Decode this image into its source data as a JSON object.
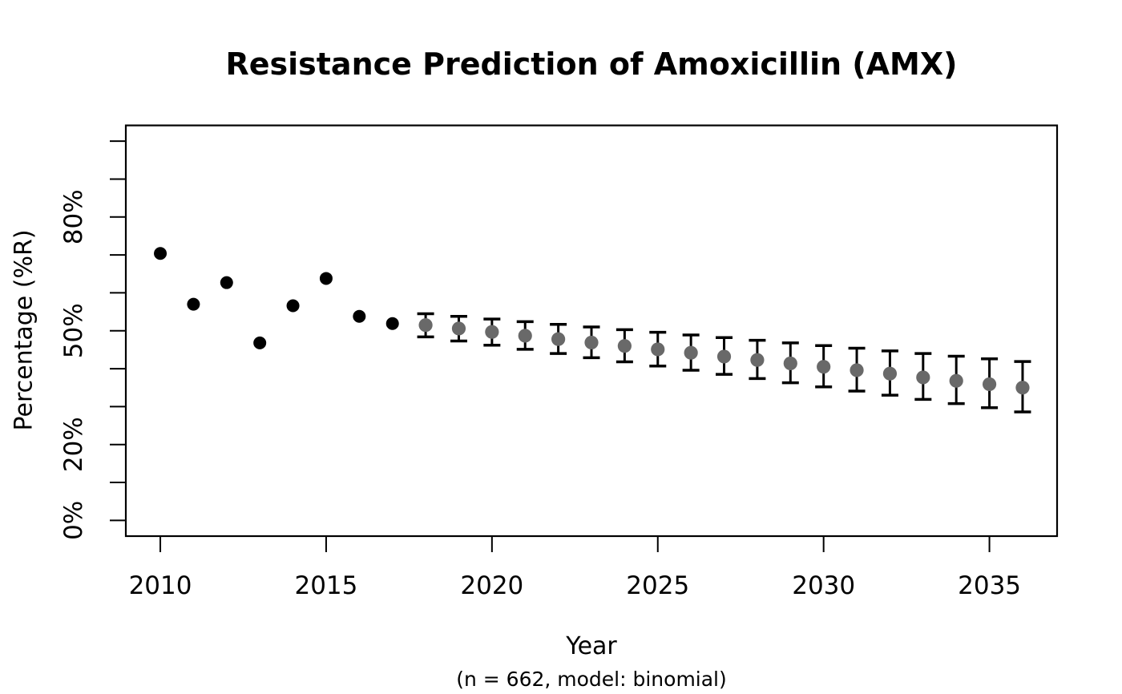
{
  "title": "Resistance Prediction of Amoxicillin (AMX)",
  "y_axis_label": "Percentage (%R)",
  "x_axis_label": "Year",
  "x_axis_sublabel": "(n = 662, model: binomial)",
  "colors": {
    "background": "#ffffff",
    "foreground": "#000000",
    "observed_point": "#000000",
    "prediction_point": "#696969",
    "error_bar": "#000000"
  },
  "chart_data": {
    "type": "scatter",
    "title": "Resistance Prediction of Amoxicillin (AMX)",
    "xlabel": "Year",
    "xlabel_note": "(n = 662, model: binomial)",
    "ylabel": "Percentage (%R)",
    "sample_size": 662,
    "model": "binomial",
    "grid": false,
    "legend": "none",
    "xlim": [
      2008.96,
      2037.04
    ],
    "ylim_pct": [
      -4.16,
      104.16
    ],
    "x_ticks": [
      2010,
      2015,
      2020,
      2025,
      2030,
      2035
    ],
    "y_minor_ticks_pct": [
      0,
      10,
      20,
      30,
      40,
      50,
      60,
      70,
      80,
      90,
      100
    ],
    "y_labeled_ticks": [
      {
        "pct": 0,
        "label": "0%"
      },
      {
        "pct": 20,
        "label": "20%"
      },
      {
        "pct": 50,
        "label": "50%"
      },
      {
        "pct": 80,
        "label": "80%"
      }
    ],
    "series": [
      {
        "name": "observed",
        "marker": "filled-circle",
        "color": "#000000",
        "points": [
          {
            "x": 2010,
            "y": 70.4
          },
          {
            "x": 2011,
            "y": 57.0
          },
          {
            "x": 2012,
            "y": 62.7
          },
          {
            "x": 2013,
            "y": 46.8
          },
          {
            "x": 2014,
            "y": 56.6
          },
          {
            "x": 2015,
            "y": 63.8
          },
          {
            "x": 2016,
            "y": 53.8
          },
          {
            "x": 2017,
            "y": 51.9
          }
        ]
      },
      {
        "name": "predicted",
        "marker": "filled-circle-with-error-bar",
        "color": "#696969",
        "error_bar_color": "#000000",
        "points": [
          {
            "x": 2018,
            "y": 51.5,
            "lo": 48.4,
            "hi": 54.5
          },
          {
            "x": 2019,
            "y": 50.6,
            "lo": 47.3,
            "hi": 53.8
          },
          {
            "x": 2020,
            "y": 49.7,
            "lo": 46.2,
            "hi": 53.1
          },
          {
            "x": 2021,
            "y": 48.7,
            "lo": 45.1,
            "hi": 52.4
          },
          {
            "x": 2022,
            "y": 47.8,
            "lo": 44.0,
            "hi": 51.7
          },
          {
            "x": 2023,
            "y": 46.9,
            "lo": 42.9,
            "hi": 51.0
          },
          {
            "x": 2024,
            "y": 46.0,
            "lo": 41.8,
            "hi": 50.3
          },
          {
            "x": 2025,
            "y": 45.1,
            "lo": 40.7,
            "hi": 49.6
          },
          {
            "x": 2026,
            "y": 44.2,
            "lo": 39.6,
            "hi": 48.9
          },
          {
            "x": 2027,
            "y": 43.2,
            "lo": 38.5,
            "hi": 48.2
          },
          {
            "x": 2028,
            "y": 42.3,
            "lo": 37.4,
            "hi": 47.5
          },
          {
            "x": 2029,
            "y": 41.4,
            "lo": 36.3,
            "hi": 46.8
          },
          {
            "x": 2030,
            "y": 40.5,
            "lo": 35.2,
            "hi": 46.1
          },
          {
            "x": 2031,
            "y": 39.6,
            "lo": 34.1,
            "hi": 45.4
          },
          {
            "x": 2032,
            "y": 38.7,
            "lo": 33.0,
            "hi": 44.7
          },
          {
            "x": 2033,
            "y": 37.7,
            "lo": 31.9,
            "hi": 44.0
          },
          {
            "x": 2034,
            "y": 36.8,
            "lo": 30.8,
            "hi": 43.3
          },
          {
            "x": 2035,
            "y": 35.9,
            "lo": 29.7,
            "hi": 42.6
          },
          {
            "x": 2036,
            "y": 35.0,
            "lo": 28.6,
            "hi": 41.9
          }
        ]
      }
    ]
  }
}
